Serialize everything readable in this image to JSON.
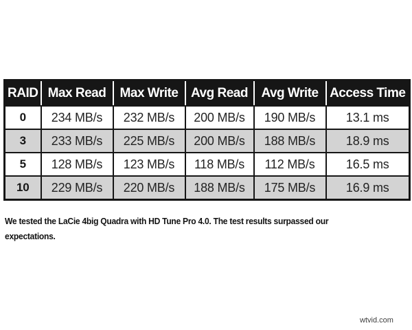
{
  "table": {
    "columns": [
      "RAID",
      "Max Read",
      "Max Write",
      "Avg Read",
      "Avg Write",
      "Access Time"
    ],
    "rows": [
      [
        "0",
        "234 MB/s",
        "232 MB/s",
        "200 MB/s",
        "190 MB/s",
        "13.1 ms"
      ],
      [
        "3",
        "233 MB/s",
        "225 MB/s",
        "200 MB/s",
        "188 MB/s",
        "18.9 ms"
      ],
      [
        "5",
        "128 MB/s",
        "123 MB/s",
        "118 MB/s",
        "112 MB/s",
        "16.5 ms"
      ],
      [
        "10",
        "229 MB/s",
        "220 MB/s",
        "188 MB/s",
        "175 MB/s",
        "16.9 ms"
      ]
    ]
  },
  "caption": {
    "lines": [
      "We tested the LaCie 4big Quadra with HD Tune Pro 4.0. The test results surpassed our",
      "expectations."
    ]
  },
  "watermark": "wtvid.com",
  "colors": {
    "header_bg": "#161616",
    "header_text": "#ffffff",
    "border": "#161616",
    "alt_row_bg": "#d3d3d3",
    "body_text": "#232323",
    "watermark_text": "#3d3d3d",
    "page_bg": "#ffffff"
  }
}
